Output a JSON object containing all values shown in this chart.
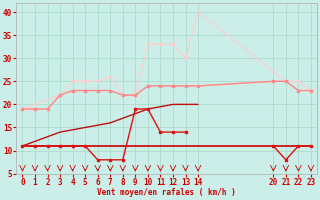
{
  "bg_color": "#cceee8",
  "grid_color": "#aaddcc",
  "xlabel": "Vent moyen/en rafales ( km/h )",
  "xlim": [
    -0.5,
    23.5
  ],
  "ylim": [
    5,
    42
  ],
  "yticks": [
    5,
    10,
    15,
    20,
    25,
    30,
    35,
    40
  ],
  "xticks": [
    0,
    1,
    2,
    3,
    4,
    5,
    6,
    7,
    8,
    9,
    10,
    11,
    12,
    13,
    14,
    20,
    21,
    22,
    23
  ],
  "series": [
    {
      "x": [
        0,
        1,
        2,
        3,
        4,
        5,
        6,
        7,
        8,
        9,
        10,
        11,
        12,
        13,
        14,
        20,
        21,
        22,
        23
      ],
      "y": [
        11,
        11,
        11,
        11,
        11,
        11,
        11,
        11,
        11,
        11,
        11,
        11,
        11,
        11,
        11,
        11,
        11,
        11,
        11
      ],
      "color": "#cc0000",
      "lw": 1.2,
      "marker": null,
      "ms": 0,
      "zorder": 4
    },
    {
      "x": [
        0,
        1,
        2,
        3,
        4,
        5,
        6,
        7,
        8,
        9,
        10,
        11,
        12,
        13,
        14,
        20,
        21,
        22,
        23
      ],
      "y": [
        11,
        11,
        11,
        11,
        11,
        11,
        8,
        8,
        8,
        19,
        19,
        14,
        14,
        14,
        null,
        11,
        8,
        11,
        11
      ],
      "color": "#dd1111",
      "lw": 1.0,
      "marker": "s",
      "ms": 2.0,
      "zorder": 5
    },
    {
      "x": [
        0,
        1,
        2,
        3,
        4,
        5,
        6,
        7,
        8,
        9,
        10,
        11,
        12,
        13,
        14
      ],
      "y": [
        11,
        12,
        13,
        14,
        14.5,
        15,
        15.5,
        16,
        17,
        18,
        19,
        19.5,
        20,
        20,
        20
      ],
      "color": "#bb1111",
      "lw": 1.0,
      "marker": null,
      "ms": 0,
      "zorder": 3
    },
    {
      "x": [
        0,
        1,
        2,
        3,
        4,
        5,
        6,
        7,
        8,
        9,
        10,
        11,
        12,
        13,
        14,
        20,
        21,
        22,
        23
      ],
      "y": [
        19,
        19,
        19,
        22,
        23,
        23,
        23,
        23,
        22,
        22,
        24,
        24,
        24,
        24,
        24,
        25,
        25,
        23,
        23
      ],
      "color": "#ff8888",
      "lw": 1.0,
      "marker": "s",
      "ms": 2.0,
      "zorder": 3
    },
    {
      "x": [
        0,
        1,
        2,
        3,
        4,
        5,
        6,
        7,
        8,
        9,
        10,
        11,
        12,
        13,
        14,
        20,
        21,
        22,
        23
      ],
      "y": [
        19,
        19,
        19,
        22,
        23,
        23,
        23,
        23,
        22,
        22,
        24,
        24,
        24,
        24,
        24,
        25,
        25,
        23,
        23
      ],
      "color": "#ffbbbb",
      "lw": 0.8,
      "marker": null,
      "ms": 0,
      "zorder": 2
    },
    {
      "x": [
        0,
        3,
        4,
        5,
        6,
        7,
        8,
        9,
        10,
        11,
        12,
        13,
        14,
        21,
        22,
        23
      ],
      "y": [
        19,
        22,
        25,
        25,
        25,
        26,
        22,
        22,
        33,
        33,
        33,
        30,
        40,
        25,
        25,
        23
      ],
      "color": "#ffcccc",
      "lw": 0.8,
      "marker": "s",
      "ms": 1.5,
      "zorder": 2
    }
  ],
  "wind_arrows_x": [
    0,
    1,
    2,
    3,
    4,
    5,
    6,
    7,
    8,
    9,
    10,
    11,
    12,
    13,
    14,
    20,
    21,
    22,
    23
  ]
}
